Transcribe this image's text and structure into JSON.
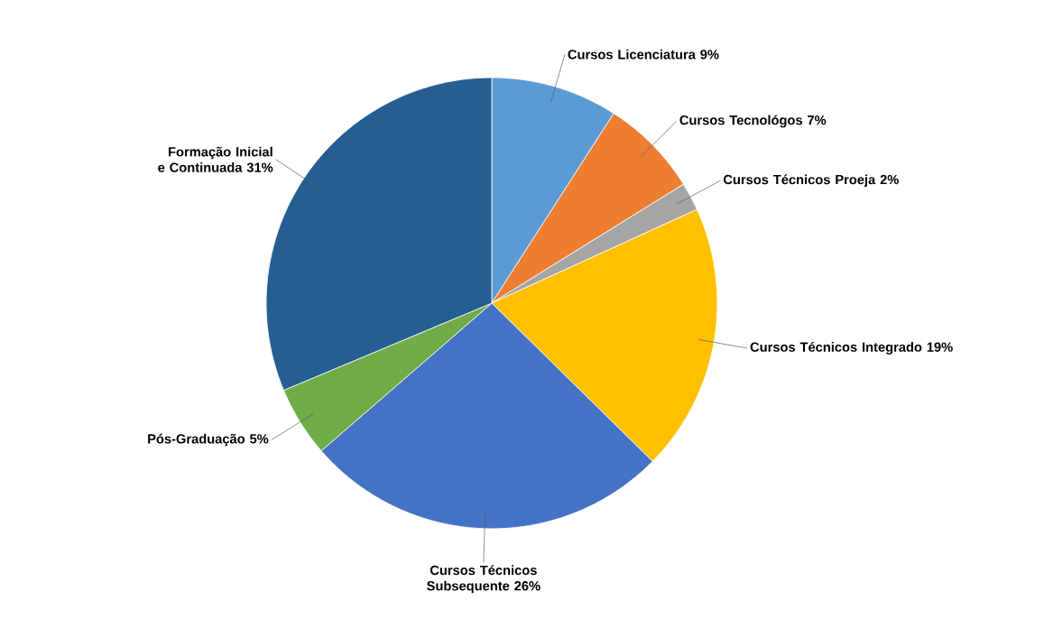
{
  "chart_data": {
    "type": "pie",
    "categories": [
      "Cursos Licenciatura",
      "Cursos Tecnológos",
      "Cursos Técnicos Proeja",
      "Cursos Técnicos Integrado",
      "Cursos Técnicos Subsequente",
      "Pós-Graduação",
      "Formação Inicial e Continuada"
    ],
    "values": [
      9,
      7,
      2,
      19,
      26,
      5,
      31
    ],
    "value_labels": [
      "9%",
      "7%",
      "2%",
      "19%",
      "26%",
      "5%",
      "31%"
    ],
    "colors": [
      "#5b9bd5",
      "#ed7d31",
      "#a5a5a5",
      "#ffc000",
      "#4472c4",
      "#70ad47",
      "#255e91"
    ]
  }
}
